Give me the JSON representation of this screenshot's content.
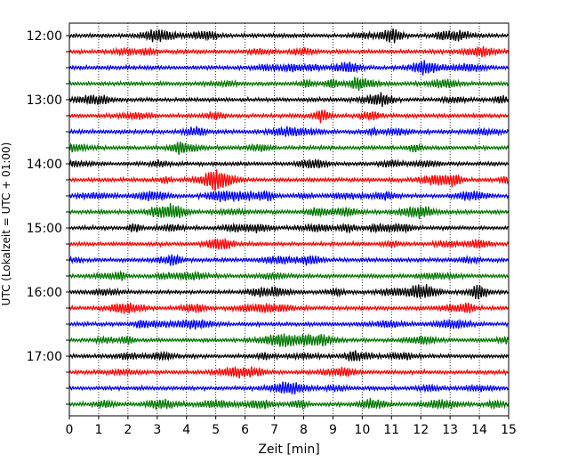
{
  "chart_data": {
    "type": "line",
    "title": "",
    "xlabel": "Zeit  [min]",
    "ylabel": "UTC (Lokalzeit = UTC + 01:00)",
    "xlim": [
      0,
      15
    ],
    "x_ticks": [
      "0",
      "1",
      "2",
      "3",
      "4",
      "5",
      "6",
      "7",
      "8",
      "9",
      "10",
      "11",
      "12",
      "13",
      "14",
      "15"
    ],
    "y_tick_labels": [
      "12:00",
      "13:00",
      "14:00",
      "15:00",
      "16:00",
      "17:00"
    ],
    "grid": "vertical dotted lines at each minute",
    "trace_interval_min": 15,
    "trace_colors": [
      "#000000",
      "#ff0000",
      "#0000ff",
      "#007700"
    ],
    "series": [
      {
        "start": "12:00",
        "color": "#000000"
      },
      {
        "start": "12:15",
        "color": "#ff0000"
      },
      {
        "start": "12:30",
        "color": "#0000ff"
      },
      {
        "start": "12:45",
        "color": "#007700"
      },
      {
        "start": "13:00",
        "color": "#000000"
      },
      {
        "start": "13:15",
        "color": "#ff0000"
      },
      {
        "start": "13:30",
        "color": "#0000ff"
      },
      {
        "start": "13:45",
        "color": "#007700"
      },
      {
        "start": "14:00",
        "color": "#000000"
      },
      {
        "start": "14:15",
        "color": "#ff0000"
      },
      {
        "start": "14:30",
        "color": "#0000ff"
      },
      {
        "start": "14:45",
        "color": "#007700"
      },
      {
        "start": "15:00",
        "color": "#000000"
      },
      {
        "start": "15:15",
        "color": "#ff0000"
      },
      {
        "start": "15:30",
        "color": "#0000ff"
      },
      {
        "start": "15:45",
        "color": "#007700"
      },
      {
        "start": "16:00",
        "color": "#000000"
      },
      {
        "start": "16:15",
        "color": "#ff0000"
      },
      {
        "start": "16:30",
        "color": "#0000ff"
      },
      {
        "start": "16:45",
        "color": "#007700"
      },
      {
        "start": "17:00",
        "color": "#000000"
      },
      {
        "start": "17:15",
        "color": "#ff0000"
      },
      {
        "start": "17:30",
        "color": "#0000ff"
      },
      {
        "start": "17:45",
        "color": "#007700"
      }
    ]
  }
}
